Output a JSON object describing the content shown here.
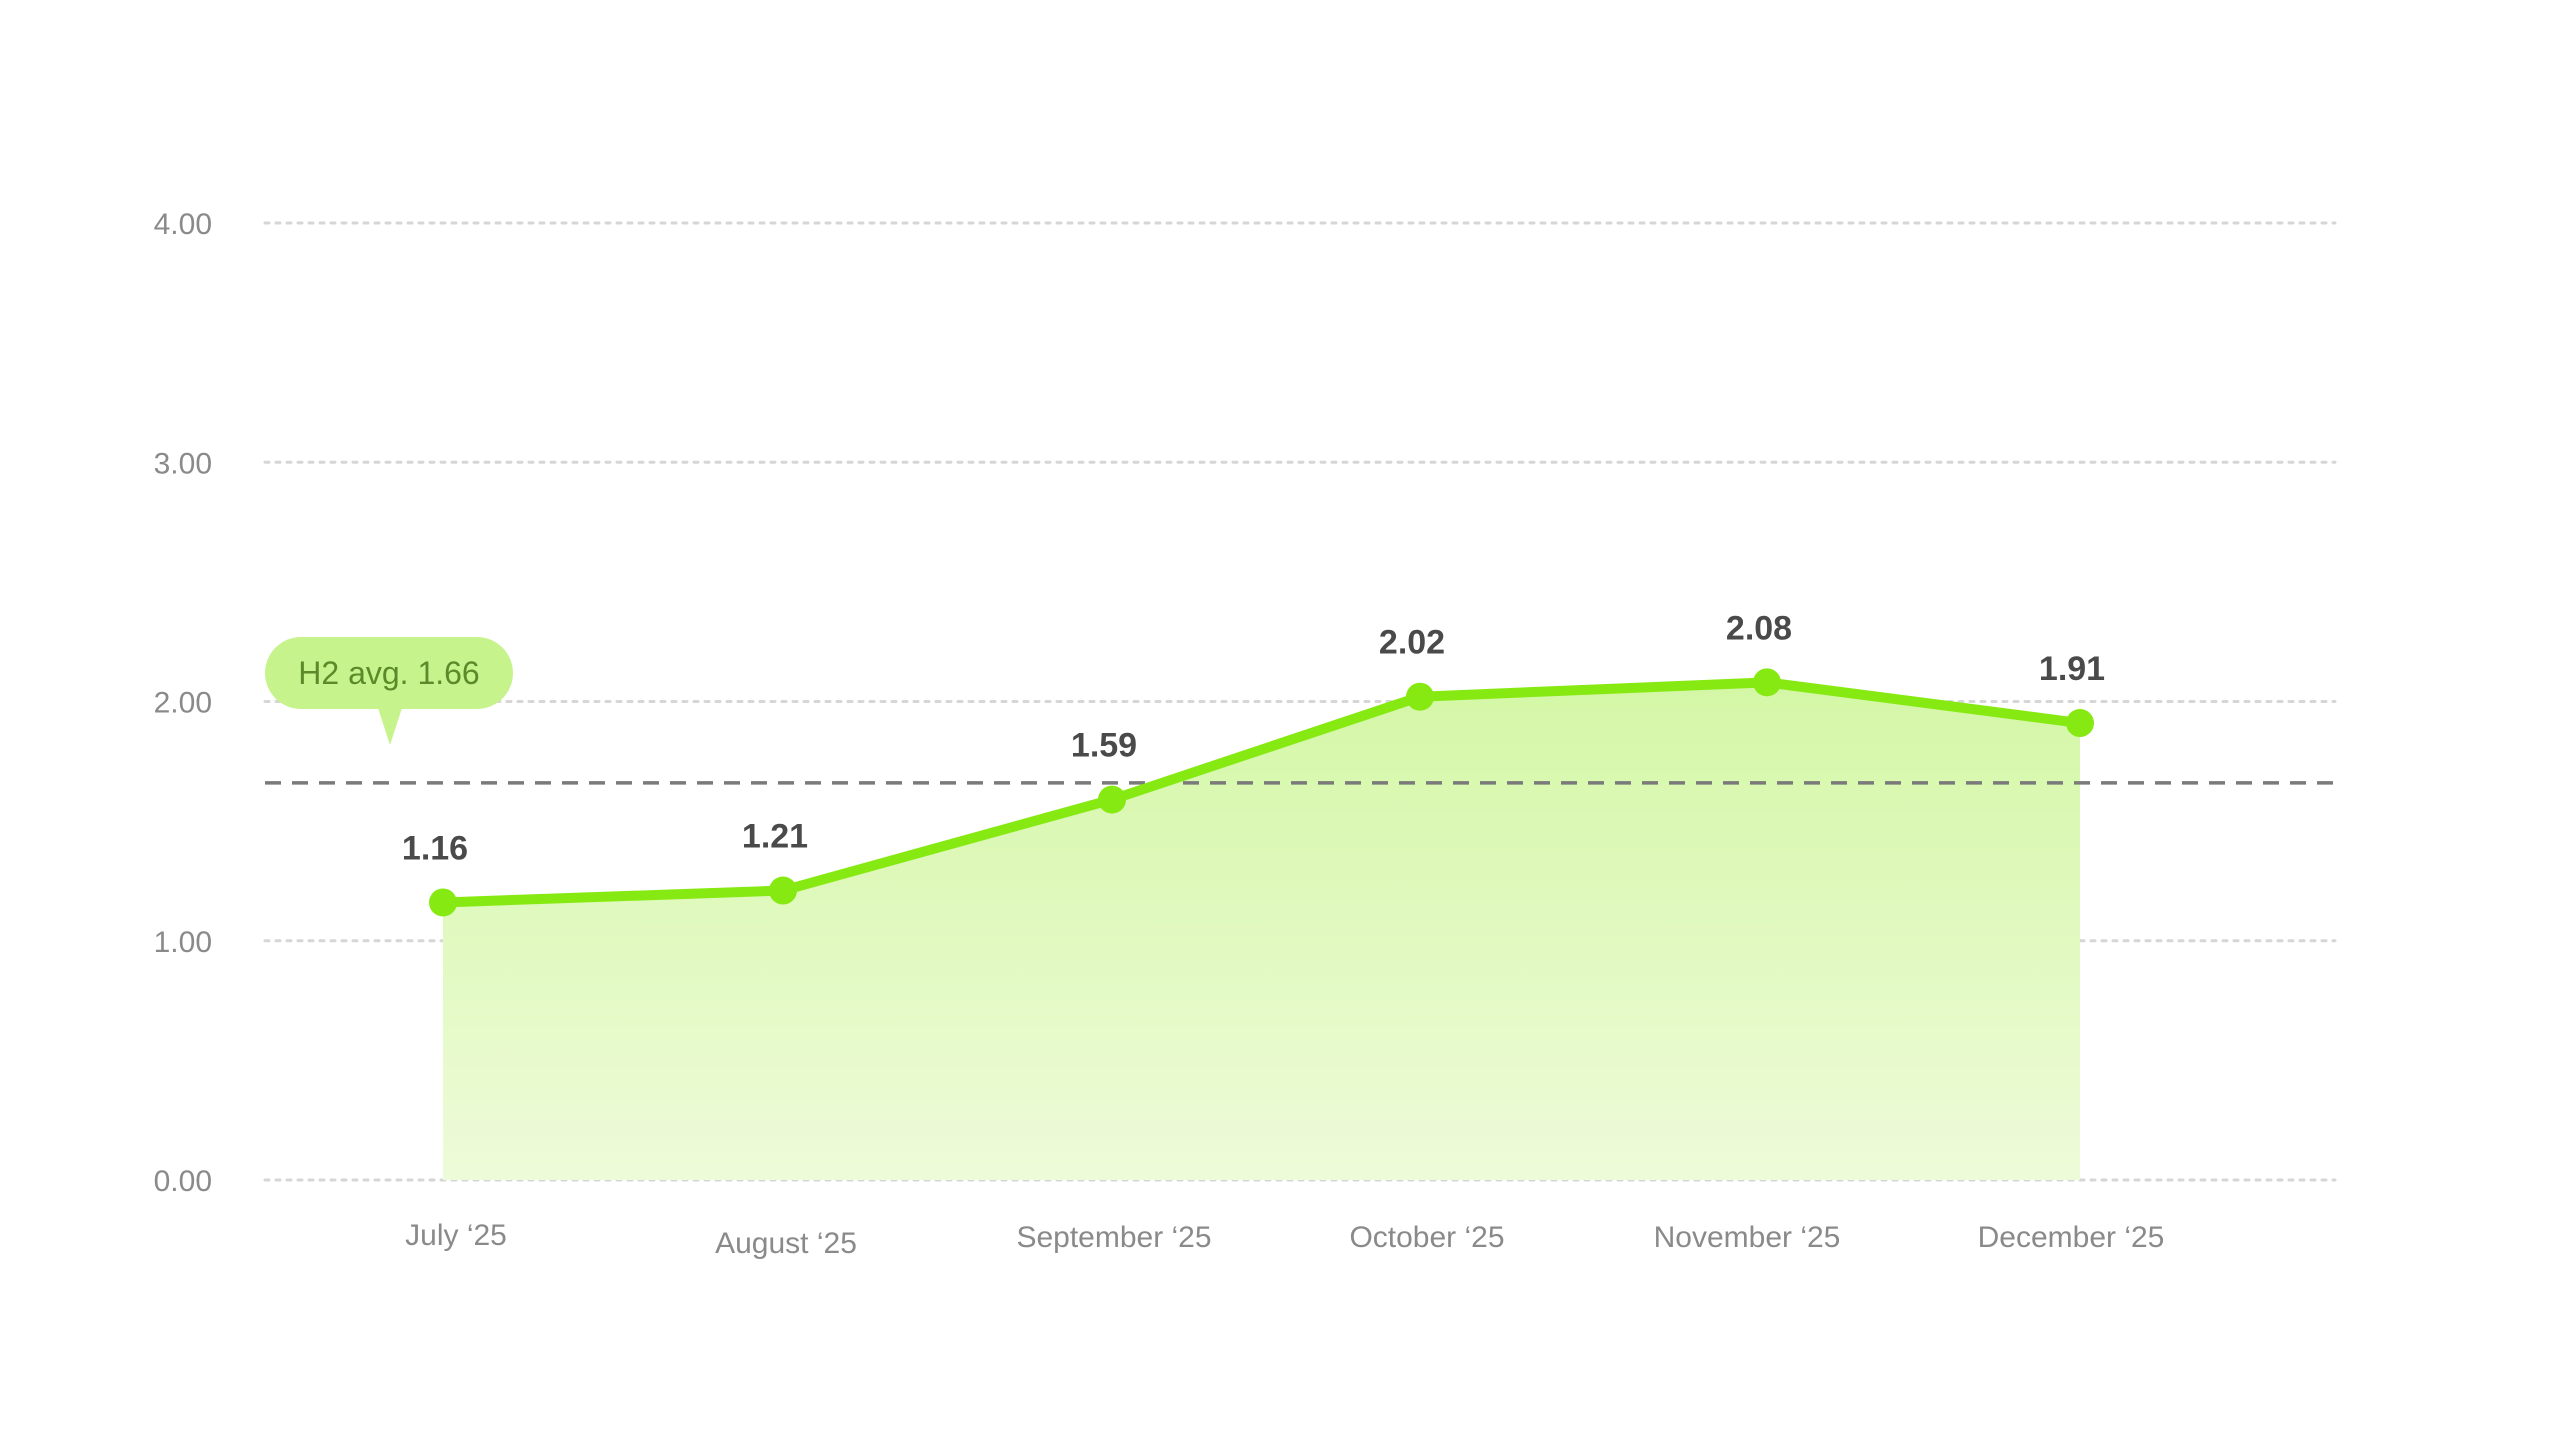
{
  "chart_data": {
    "type": "area",
    "categories": [
      "July ‘25",
      "August ‘25",
      "September ‘25",
      "October ‘25",
      "November ‘25",
      "December ‘25"
    ],
    "series": [
      {
        "values": [
          1.16,
          1.21,
          1.59,
          2.02,
          2.08,
          1.91
        ]
      }
    ],
    "data_labels": [
      "1.16",
      "1.21",
      "1.59",
      "2.02",
      "2.08",
      "1.91"
    ],
    "y_ticks": [
      "0.00",
      "1.00",
      "2.00",
      "3.00",
      "4.00"
    ],
    "ylim": [
      0,
      4
    ],
    "grid": true,
    "reference_line": {
      "value": 1.66,
      "label": "H2 avg. 1.66"
    },
    "colors": {
      "line": "#86ea12",
      "area_top": "#d4f7a6",
      "area_bottom": "#eefbd9",
      "grid": "#d6d6d6",
      "reference": "#7a7a7a",
      "badge_fill": "#c6f38b",
      "badge_text": "#5a8a2a"
    }
  }
}
